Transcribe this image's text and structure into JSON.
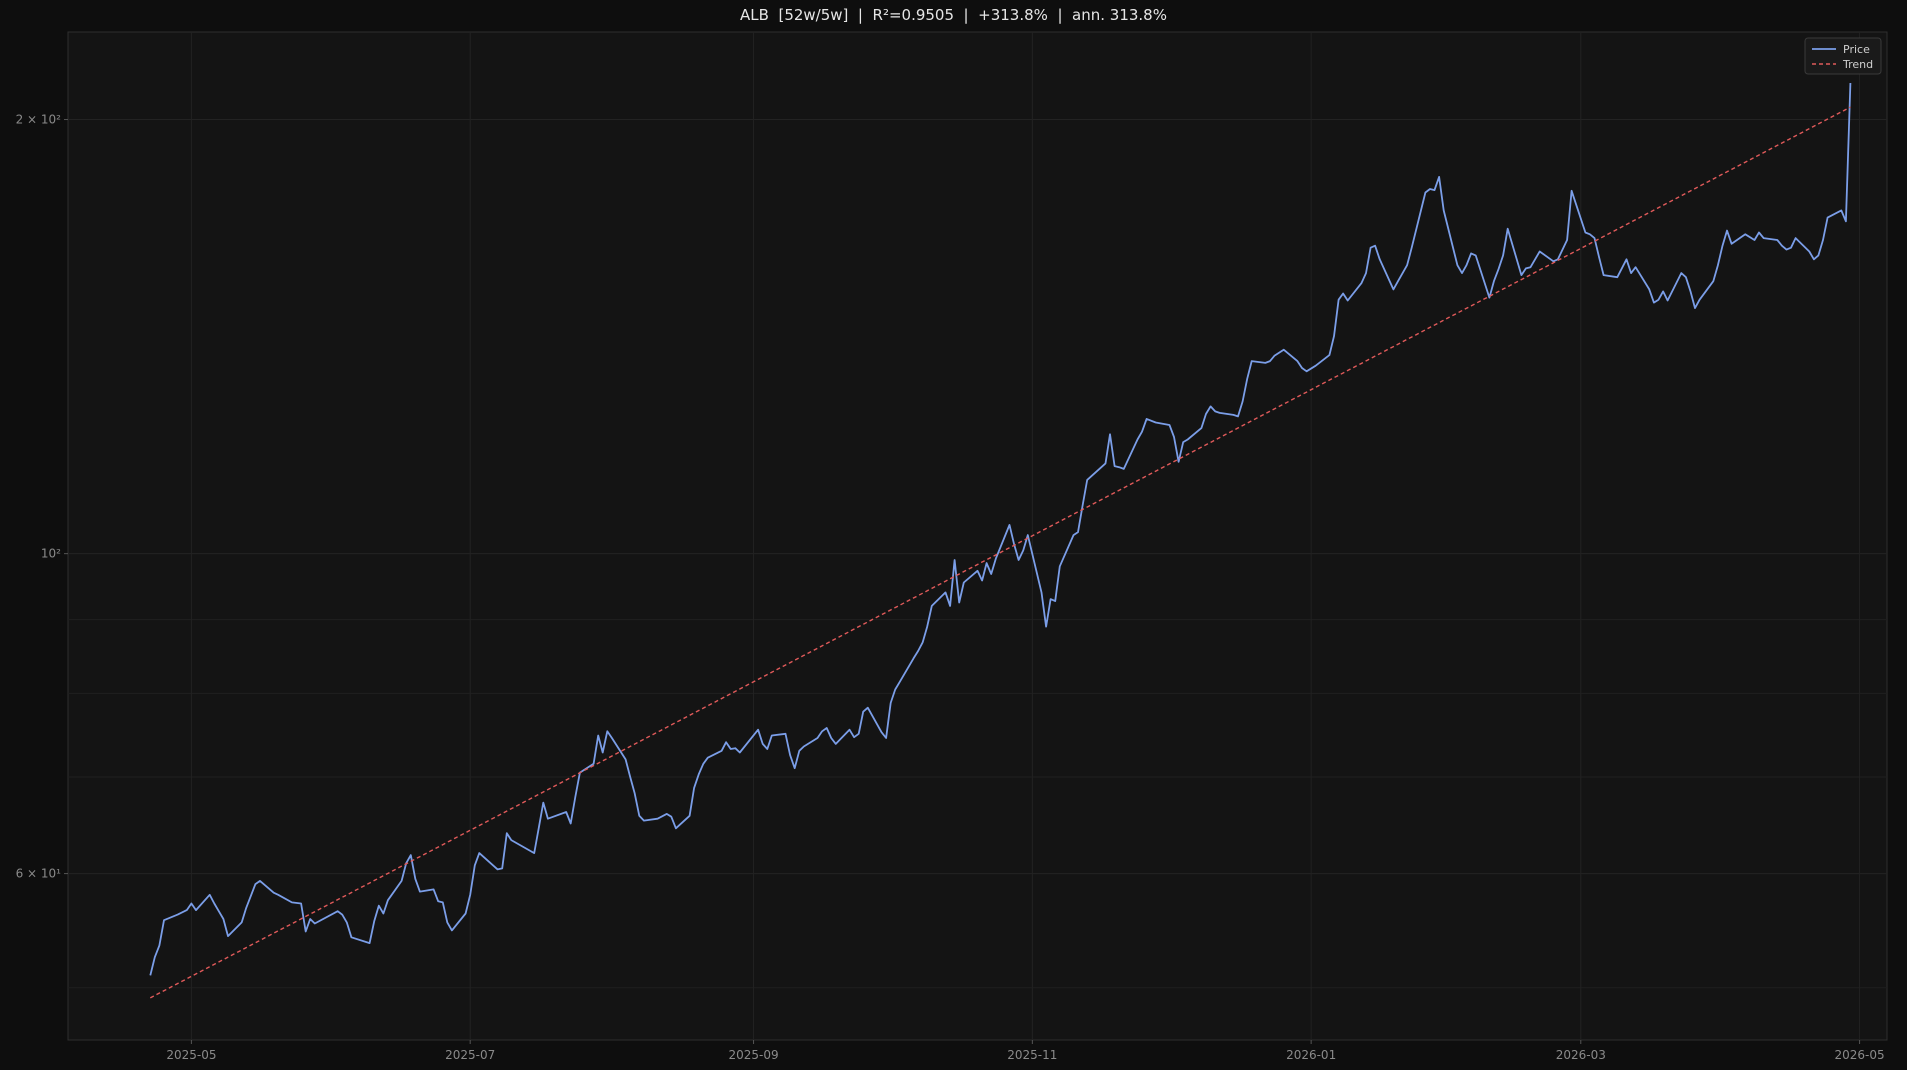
{
  "chart_data": {
    "type": "line",
    "title": "ALB  [52w/5w]  |  R²=0.9505  |  +313.8%  |  ann. 313.8%",
    "xlabel": "",
    "ylabel": "",
    "y_scale": "log",
    "ylim": [
      46,
      230
    ],
    "xlim": [
      "2025-04-04",
      "2026-05-07"
    ],
    "grid": true,
    "legend_position": "top-right",
    "y_ticks": [
      {
        "value": 60,
        "label": "6 × 10¹"
      },
      {
        "value": 100,
        "label": "10²"
      },
      {
        "value": 200,
        "label": "2 × 10²"
      }
    ],
    "y_minor_ticks": [
      50,
      70,
      80,
      90
    ],
    "x_ticks": [
      {
        "value": "2025-05-01",
        "label": "2025-05"
      },
      {
        "value": "2025-07-01",
        "label": "2025-07"
      },
      {
        "value": "2025-09-01",
        "label": "2025-09"
      },
      {
        "value": "2025-11-01",
        "label": "2025-11"
      },
      {
        "value": "2026-01-01",
        "label": "2026-01"
      },
      {
        "value": "2026-03-01",
        "label": "2026-03"
      },
      {
        "value": "2026-05-01",
        "label": "2026-05"
      }
    ],
    "series": [
      {
        "name": "Price",
        "style": "solid",
        "color": "#7b9ee8",
        "points": [
          [
            "2025-04-22",
            51.0
          ],
          [
            "2025-04-23",
            52.5
          ],
          [
            "2025-04-24",
            53.5
          ],
          [
            "2025-04-25",
            55.7
          ],
          [
            "2025-04-28",
            56.2
          ],
          [
            "2025-04-30",
            56.6
          ],
          [
            "2025-05-01",
            57.2
          ],
          [
            "2025-05-02",
            56.6
          ],
          [
            "2025-05-05",
            58.0
          ],
          [
            "2025-05-06",
            57.2
          ],
          [
            "2025-05-07",
            56.5
          ],
          [
            "2025-05-08",
            55.8
          ],
          [
            "2025-05-09",
            54.3
          ],
          [
            "2025-05-12",
            55.5
          ],
          [
            "2025-05-13",
            56.8
          ],
          [
            "2025-05-15",
            59.0
          ],
          [
            "2025-05-16",
            59.3
          ],
          [
            "2025-05-19",
            58.2
          ],
          [
            "2025-05-20",
            58.0
          ],
          [
            "2025-05-23",
            57.3
          ],
          [
            "2025-05-25",
            57.2
          ],
          [
            "2025-05-26",
            54.7
          ],
          [
            "2025-05-27",
            55.8
          ],
          [
            "2025-05-28",
            55.4
          ],
          [
            "2025-06-02",
            56.5
          ],
          [
            "2025-06-03",
            56.2
          ],
          [
            "2025-06-04",
            55.5
          ],
          [
            "2025-06-05",
            54.2
          ],
          [
            "2025-06-09",
            53.7
          ],
          [
            "2025-06-10",
            55.6
          ],
          [
            "2025-06-11",
            57.0
          ],
          [
            "2025-06-12",
            56.3
          ],
          [
            "2025-06-13",
            57.5
          ],
          [
            "2025-06-16",
            59.3
          ],
          [
            "2025-06-17",
            61.0
          ],
          [
            "2025-06-18",
            61.8
          ],
          [
            "2025-06-19",
            59.5
          ],
          [
            "2025-06-20",
            58.3
          ],
          [
            "2025-06-23",
            58.5
          ],
          [
            "2025-06-24",
            57.4
          ],
          [
            "2025-06-25",
            57.3
          ],
          [
            "2025-06-26",
            55.5
          ],
          [
            "2025-06-27",
            54.8
          ],
          [
            "2025-06-30",
            56.3
          ],
          [
            "2025-07-01",
            58.0
          ],
          [
            "2025-07-02",
            60.8
          ],
          [
            "2025-07-03",
            62.0
          ],
          [
            "2025-07-07",
            60.4
          ],
          [
            "2025-07-08",
            60.5
          ],
          [
            "2025-07-09",
            64.0
          ],
          [
            "2025-07-10",
            63.3
          ],
          [
            "2025-07-15",
            62.0
          ],
          [
            "2025-07-16",
            64.5
          ],
          [
            "2025-07-17",
            67.2
          ],
          [
            "2025-07-18",
            65.5
          ],
          [
            "2025-07-22",
            66.2
          ],
          [
            "2025-07-23",
            65.0
          ],
          [
            "2025-07-24",
            67.8
          ],
          [
            "2025-07-25",
            70.5
          ],
          [
            "2025-07-28",
            71.5
          ],
          [
            "2025-07-29",
            74.8
          ],
          [
            "2025-07-30",
            72.8
          ],
          [
            "2025-07-31",
            75.3
          ],
          [
            "2025-08-01",
            74.5
          ],
          [
            "2025-08-04",
            72.0
          ],
          [
            "2025-08-05",
            70.0
          ],
          [
            "2025-08-06",
            68.2
          ],
          [
            "2025-08-07",
            65.8
          ],
          [
            "2025-08-08",
            65.3
          ],
          [
            "2025-08-11",
            65.5
          ],
          [
            "2025-08-13",
            66.0
          ],
          [
            "2025-08-14",
            65.7
          ],
          [
            "2025-08-15",
            64.5
          ],
          [
            "2025-08-18",
            65.8
          ],
          [
            "2025-08-19",
            68.8
          ],
          [
            "2025-08-20",
            70.3
          ],
          [
            "2025-08-21",
            71.5
          ],
          [
            "2025-08-22",
            72.2
          ],
          [
            "2025-08-25",
            73.0
          ],
          [
            "2025-08-26",
            74.0
          ],
          [
            "2025-08-27",
            73.2
          ],
          [
            "2025-08-28",
            73.3
          ],
          [
            "2025-08-29",
            72.8
          ],
          [
            "2025-09-02",
            75.5
          ],
          [
            "2025-09-03",
            73.8
          ],
          [
            "2025-09-04",
            73.2
          ],
          [
            "2025-09-05",
            74.8
          ],
          [
            "2025-09-08",
            75.0
          ],
          [
            "2025-09-09",
            72.5
          ],
          [
            "2025-09-10",
            71.0
          ],
          [
            "2025-09-11",
            73.0
          ],
          [
            "2025-09-12",
            73.5
          ],
          [
            "2025-09-15",
            74.5
          ],
          [
            "2025-09-16",
            75.3
          ],
          [
            "2025-09-17",
            75.7
          ],
          [
            "2025-09-18",
            74.5
          ],
          [
            "2025-09-19",
            73.8
          ],
          [
            "2025-09-22",
            75.5
          ],
          [
            "2025-09-23",
            74.6
          ],
          [
            "2025-09-24",
            75.0
          ],
          [
            "2025-09-25",
            77.7
          ],
          [
            "2025-09-26",
            78.2
          ],
          [
            "2025-09-29",
            75.2
          ],
          [
            "2025-09-30",
            74.5
          ],
          [
            "2025-10-01",
            78.8
          ],
          [
            "2025-10-02",
            80.5
          ],
          [
            "2025-10-03",
            81.5
          ],
          [
            "2025-10-06",
            84.6
          ],
          [
            "2025-10-07",
            85.6
          ],
          [
            "2025-10-08",
            86.8
          ],
          [
            "2025-10-09",
            89.0
          ],
          [
            "2025-10-10",
            92.0
          ],
          [
            "2025-10-13",
            94.0
          ],
          [
            "2025-10-14",
            92.0
          ],
          [
            "2025-10-15",
            99.0
          ],
          [
            "2025-10-16",
            92.5
          ],
          [
            "2025-10-17",
            95.5
          ],
          [
            "2025-10-20",
            97.3
          ],
          [
            "2025-10-21",
            95.8
          ],
          [
            "2025-10-22",
            98.5
          ],
          [
            "2025-10-23",
            96.8
          ],
          [
            "2025-10-24",
            99.2
          ],
          [
            "2025-10-27",
            104.7
          ],
          [
            "2025-10-28",
            101.5
          ],
          [
            "2025-10-29",
            99.0
          ],
          [
            "2025-10-30",
            100.5
          ],
          [
            "2025-10-31",
            103.0
          ],
          [
            "2025-11-03",
            94.0
          ],
          [
            "2025-11-04",
            89.0
          ],
          [
            "2025-11-05",
            93.0
          ],
          [
            "2025-11-06",
            92.7
          ],
          [
            "2025-11-07",
            98.0
          ],
          [
            "2025-11-10",
            103.0
          ],
          [
            "2025-11-11",
            103.5
          ],
          [
            "2025-11-12",
            108.0
          ],
          [
            "2025-11-13",
            112.5
          ],
          [
            "2025-11-17",
            115.5
          ],
          [
            "2025-11-18",
            121.0
          ],
          [
            "2025-11-19",
            115.0
          ],
          [
            "2025-11-20",
            114.8
          ],
          [
            "2025-11-21",
            114.5
          ],
          [
            "2025-11-24",
            120.0
          ],
          [
            "2025-11-25",
            121.5
          ],
          [
            "2025-11-26",
            124.0
          ],
          [
            "2025-11-28",
            123.3
          ],
          [
            "2025-12-01",
            122.8
          ],
          [
            "2025-12-02",
            120.5
          ],
          [
            "2025-12-03",
            115.8
          ],
          [
            "2025-12-04",
            119.5
          ],
          [
            "2025-12-05",
            120.0
          ],
          [
            "2025-12-08",
            122.2
          ],
          [
            "2025-12-09",
            125.0
          ],
          [
            "2025-12-10",
            126.5
          ],
          [
            "2025-12-11",
            125.5
          ],
          [
            "2025-12-12",
            125.2
          ],
          [
            "2025-12-15",
            124.8
          ],
          [
            "2025-12-16",
            124.5
          ],
          [
            "2025-12-17",
            127.5
          ],
          [
            "2025-12-18",
            132.2
          ],
          [
            "2025-12-19",
            136.0
          ],
          [
            "2025-12-22",
            135.6
          ],
          [
            "2025-12-23",
            136.0
          ],
          [
            "2025-12-24",
            137.2
          ],
          [
            "2025-12-26",
            138.5
          ],
          [
            "2025-12-29",
            136.0
          ],
          [
            "2025-12-30",
            134.5
          ],
          [
            "2025-12-31",
            133.8
          ],
          [
            "2026-01-02",
            135.0
          ],
          [
            "2026-01-05",
            137.3
          ],
          [
            "2026-01-06",
            141.5
          ],
          [
            "2026-01-07",
            150.0
          ],
          [
            "2026-01-08",
            151.5
          ],
          [
            "2026-01-09",
            149.8
          ],
          [
            "2026-01-12",
            154.0
          ],
          [
            "2026-01-13",
            156.5
          ],
          [
            "2026-01-14",
            163.0
          ],
          [
            "2026-01-15",
            163.5
          ],
          [
            "2026-01-16",
            160.0
          ],
          [
            "2026-01-19",
            152.5
          ],
          [
            "2026-01-20",
            154.5
          ],
          [
            "2026-01-22",
            158.5
          ],
          [
            "2026-01-23",
            163.0
          ],
          [
            "2026-01-26",
            178.0
          ],
          [
            "2026-01-27",
            179.0
          ],
          [
            "2026-01-28",
            178.7
          ],
          [
            "2026-01-29",
            182.5
          ],
          [
            "2026-01-30",
            173.0
          ],
          [
            "2026-02-02",
            158.5
          ],
          [
            "2026-02-03",
            156.5
          ],
          [
            "2026-02-04",
            158.5
          ],
          [
            "2026-02-05",
            161.5
          ],
          [
            "2026-02-06",
            161.0
          ],
          [
            "2026-02-09",
            150.5
          ],
          [
            "2026-02-10",
            154.5
          ],
          [
            "2026-02-11",
            157.5
          ],
          [
            "2026-02-12",
            161.0
          ],
          [
            "2026-02-13",
            168.0
          ],
          [
            "2026-02-16",
            156.0
          ],
          [
            "2026-02-17",
            157.7
          ],
          [
            "2026-02-18",
            158.0
          ],
          [
            "2026-02-19",
            160.0
          ],
          [
            "2026-02-20",
            162.0
          ],
          [
            "2026-02-23",
            159.5
          ],
          [
            "2026-02-24",
            160.0
          ],
          [
            "2026-02-25",
            162.5
          ],
          [
            "2026-02-26",
            165.0
          ],
          [
            "2026-02-27",
            178.5
          ],
          [
            "2026-03-02",
            167.0
          ],
          [
            "2026-03-03",
            166.5
          ],
          [
            "2026-03-04",
            165.5
          ],
          [
            "2026-03-05",
            160.5
          ],
          [
            "2026-03-06",
            156.0
          ],
          [
            "2026-03-09",
            155.5
          ],
          [
            "2026-03-11",
            160.0
          ],
          [
            "2026-03-12",
            156.5
          ],
          [
            "2026-03-13",
            158.0
          ],
          [
            "2026-03-16",
            152.5
          ],
          [
            "2026-03-17",
            149.3
          ],
          [
            "2026-03-18",
            150.0
          ],
          [
            "2026-03-19",
            152.0
          ],
          [
            "2026-03-20",
            149.8
          ],
          [
            "2026-03-23",
            156.5
          ],
          [
            "2026-03-24",
            155.5
          ],
          [
            "2026-03-25",
            152.0
          ],
          [
            "2026-03-26",
            148.0
          ],
          [
            "2026-03-27",
            150.0
          ],
          [
            "2026-03-30",
            154.5
          ],
          [
            "2026-03-31",
            158.5
          ],
          [
            "2026-04-01",
            163.5
          ],
          [
            "2026-04-02",
            167.5
          ],
          [
            "2026-04-03",
            164.0
          ],
          [
            "2026-04-06",
            166.5
          ],
          [
            "2026-04-08",
            165.0
          ],
          [
            "2026-04-09",
            167.0
          ],
          [
            "2026-04-10",
            165.5
          ],
          [
            "2026-04-13",
            165.0
          ],
          [
            "2026-04-14",
            163.5
          ],
          [
            "2026-04-15",
            162.5
          ],
          [
            "2026-04-16",
            163.0
          ],
          [
            "2026-04-17",
            165.5
          ],
          [
            "2026-04-20",
            162.0
          ],
          [
            "2026-04-21",
            160.0
          ],
          [
            "2026-04-22",
            161.0
          ],
          [
            "2026-04-23",
            165.0
          ],
          [
            "2026-04-24",
            171.0
          ],
          [
            "2026-04-27",
            173.0
          ],
          [
            "2026-04-28",
            170.0
          ],
          [
            "2026-04-29",
            212.0
          ]
        ]
      },
      {
        "name": "Trend",
        "style": "dashed",
        "color": "#e05a5a",
        "start": [
          "2025-04-22",
          49.2
        ],
        "end": [
          "2026-04-29",
          204.0
        ]
      }
    ]
  }
}
